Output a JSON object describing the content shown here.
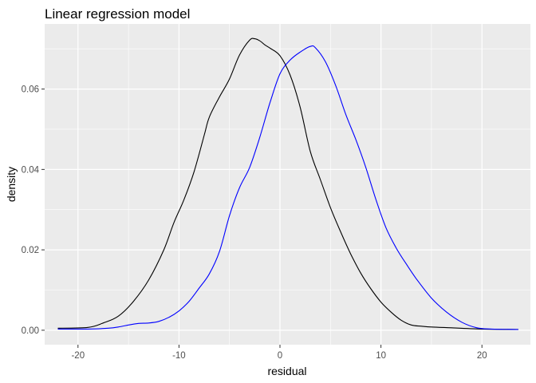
{
  "chart_data": {
    "type": "line",
    "title": "Linear regression model",
    "xlabel": "residual",
    "ylabel": "density",
    "xlim": [
      -23.3,
      24.8
    ],
    "ylim": [
      -0.0036,
      0.0762
    ],
    "grid": true,
    "legend": "none",
    "x_ticks": [
      -20,
      -10,
      0,
      10,
      20
    ],
    "x_tick_labels": [
      "-20",
      "-10",
      "0",
      "10",
      "20"
    ],
    "y_ticks": [
      0.0,
      0.02,
      0.04,
      0.06
    ],
    "y_tick_labels": [
      "0.00",
      "0.02",
      "0.04",
      "0.06"
    ],
    "series": [
      {
        "color": "#000000",
        "x": [
          -22.0,
          -19.0,
          -17.5,
          -16.0,
          -14.5,
          -13.0,
          -11.5,
          -10.5,
          -9.5,
          -8.5,
          -7.5,
          -7.0,
          -6.0,
          -5.0,
          -4.0,
          -3.0,
          -2.5,
          -2.0,
          -1.5,
          -1.0,
          0.0,
          1.0,
          2.0,
          3.0,
          4.0,
          5.0,
          6.0,
          7.0,
          8.0,
          9.0,
          10.0,
          11.0,
          12.0,
          13.0,
          14.0,
          15.0,
          17.0,
          20.0,
          23.6
        ],
        "y": [
          0.0005,
          0.0007,
          0.0018,
          0.0035,
          0.0072,
          0.0125,
          0.02,
          0.0268,
          0.0325,
          0.0395,
          0.0485,
          0.053,
          0.058,
          0.0625,
          0.0685,
          0.0722,
          0.0725,
          0.072,
          0.071,
          0.0702,
          0.0683,
          0.0635,
          0.0555,
          0.0445,
          0.0375,
          0.0305,
          0.0245,
          0.019,
          0.0142,
          0.0103,
          0.007,
          0.0045,
          0.0025,
          0.0013,
          0.001,
          0.0008,
          0.0006,
          0.0003,
          0.0002
        ]
      },
      {
        "color": "#0000ff",
        "x": [
          -22.0,
          -19.0,
          -17.0,
          -16.0,
          -15.0,
          -14.0,
          -13.0,
          -12.0,
          -11.0,
          -10.0,
          -9.0,
          -8.0,
          -7.0,
          -6.0,
          -5.0,
          -4.0,
          -3.0,
          -2.0,
          -1.0,
          0.0,
          1.0,
          2.0,
          3.0,
          3.5,
          4.5,
          5.5,
          6.5,
          7.5,
          8.5,
          9.5,
          10.5,
          11.5,
          12.5,
          13.5,
          15.0,
          16.5,
          18.0,
          19.5,
          21.0,
          23.6
        ],
        "y": [
          0.0003,
          0.0003,
          0.0005,
          0.0008,
          0.0013,
          0.0017,
          0.0018,
          0.0022,
          0.0032,
          0.0048,
          0.0072,
          0.0105,
          0.014,
          0.0195,
          0.0285,
          0.0355,
          0.0405,
          0.048,
          0.0565,
          0.0638,
          0.0672,
          0.0692,
          0.0706,
          0.0703,
          0.0668,
          0.061,
          0.0538,
          0.0475,
          0.0405,
          0.0325,
          0.0255,
          0.0205,
          0.0165,
          0.0128,
          0.008,
          0.0045,
          0.002,
          0.0006,
          0.0003,
          0.0002
        ]
      }
    ]
  }
}
